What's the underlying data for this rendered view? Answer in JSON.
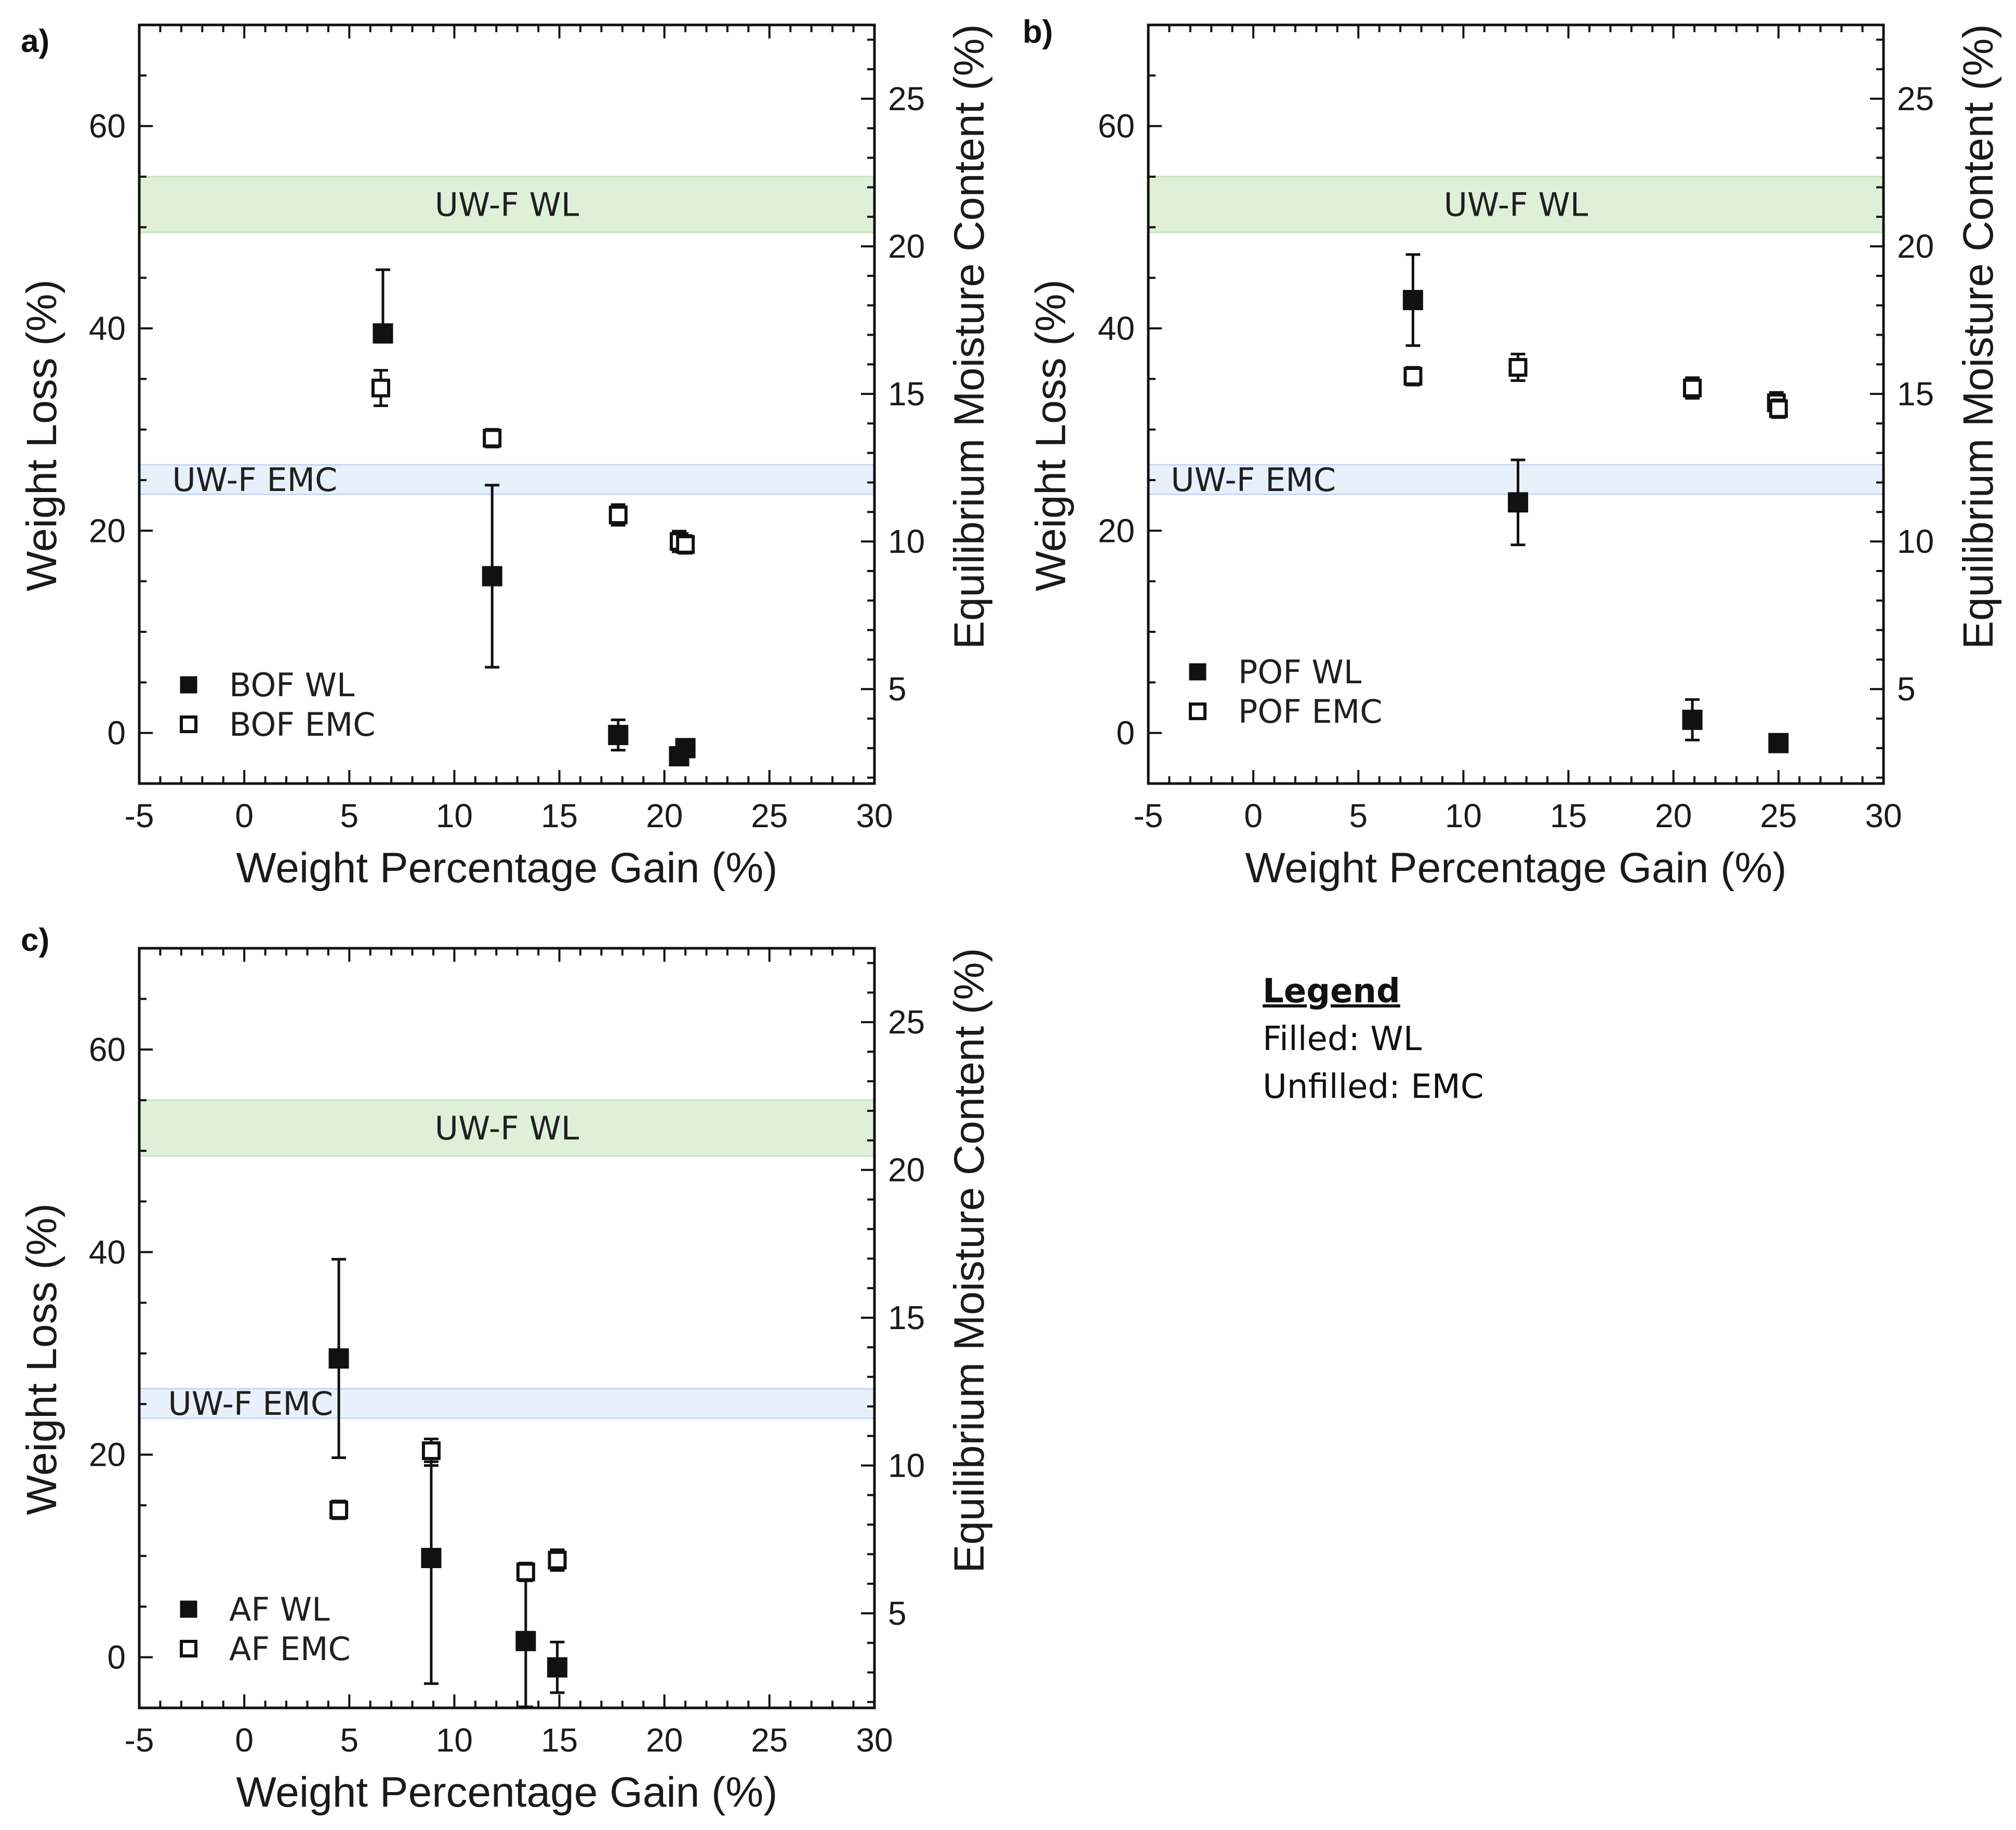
{
  "figure_legend": {
    "title": "Legend",
    "filled_line": "Filled: WL",
    "unfilled_line": "Unfilled: EMC"
  },
  "colors": {
    "wl_band": "#dff0d8",
    "wl_band_edge": "#c6e6bb",
    "emc_band": "#e8f0fb",
    "emc_band_edge": "#c9d8f0",
    "marker": "#111111"
  },
  "chart_data": [
    {
      "panel": "a)",
      "type": "scatter",
      "xlabel": "Weight Percentage Gain (%)",
      "ylabel": "Weight Loss (%)",
      "y2label": "Equilibrium Moisture Content (%)",
      "xlim": [
        -5,
        30
      ],
      "xticks": [
        -5,
        0,
        5,
        10,
        15,
        20,
        25,
        30
      ],
      "xtick_labels": [
        "-5",
        "0",
        "5",
        "10",
        "15",
        "20",
        "25",
        "30"
      ],
      "ylim": [
        -5,
        70
      ],
      "yticks": [
        0,
        20,
        40,
        60
      ],
      "ytick_labels": [
        "0",
        "20",
        "40",
        "60"
      ],
      "y2lim": [
        1.8,
        27.5
      ],
      "y2ticks": [
        5,
        10,
        15,
        20,
        25
      ],
      "y2tick_labels": [
        "5",
        "10",
        "15",
        "20",
        "25"
      ],
      "bands": [
        {
          "label": "UW-F WL",
          "axis": "left",
          "range": [
            49.5,
            55
          ],
          "label_x": 12.5
        },
        {
          "label": "UW-F EMC",
          "axis": "right",
          "range": [
            11.6,
            12.6
          ],
          "label_x": 0.5
        }
      ],
      "series": [
        {
          "name": "BOF WL",
          "axis": "left",
          "marker": "filled",
          "points": [
            {
              "x": 6.6,
              "y": 39.5,
              "err_low": 0,
              "err_high": 6.3
            },
            {
              "x": 11.8,
              "y": 15.5,
              "err_low": 9.0,
              "err_high": 9.0
            },
            {
              "x": 17.8,
              "y": -0.2,
              "err_low": 1.5,
              "err_high": 1.5
            },
            {
              "x": 20.7,
              "y": -2.3,
              "err_low": 0.4,
              "err_high": 0.4
            },
            {
              "x": 21.0,
              "y": -1.5,
              "err_low": 0.4,
              "err_high": 0.4
            }
          ]
        },
        {
          "name": "BOF EMC",
          "axis": "right",
          "marker": "open",
          "points": [
            {
              "x": 6.5,
              "y": 15.2,
              "err_low": 0.6,
              "err_high": 0.6
            },
            {
              "x": 11.8,
              "y": 13.5,
              "err_low": 0.3,
              "err_high": 0.3
            },
            {
              "x": 17.8,
              "y": 10.9,
              "err_low": 0.35,
              "err_high": 0.35
            },
            {
              "x": 20.7,
              "y": 10.0,
              "err_low": 0.35,
              "err_high": 0.35
            },
            {
              "x": 21.0,
              "y": 9.9,
              "err_low": 0.3,
              "err_high": 0.3
            }
          ]
        }
      ],
      "legend": [
        "BOF WL",
        "BOF EMC"
      ]
    },
    {
      "panel": "b)",
      "type": "scatter",
      "xlabel": "Weight Percentage Gain (%)",
      "ylabel": "Weight Loss (%)",
      "y2label": "Equilibrium Moisture Content (%)",
      "xlim": [
        -5,
        30
      ],
      "xticks": [
        -5,
        0,
        5,
        10,
        15,
        20,
        25,
        30
      ],
      "xtick_labels": [
        "-5",
        "0",
        "5",
        "10",
        "15",
        "20",
        "25",
        "30"
      ],
      "ylim": [
        -5,
        70
      ],
      "yticks": [
        0,
        20,
        40,
        60
      ],
      "ytick_labels": [
        "0",
        "20",
        "40",
        "60"
      ],
      "y2lim": [
        1.8,
        27.5
      ],
      "y2ticks": [
        5,
        10,
        15,
        20,
        25
      ],
      "y2tick_labels": [
        "5",
        "10",
        "15",
        "20",
        "25"
      ],
      "bands": [
        {
          "label": "UW-F WL",
          "axis": "left",
          "range": [
            49.5,
            55
          ],
          "label_x": 12.5
        },
        {
          "label": "UW-F EMC",
          "axis": "right",
          "range": [
            11.6,
            12.6
          ],
          "label_x": 0.0
        }
      ],
      "series": [
        {
          "name": "POF WL",
          "axis": "left",
          "marker": "filled",
          "points": [
            {
              "x": 7.6,
              "y": 42.8,
              "err_low": 4.5,
              "err_high": 4.5
            },
            {
              "x": 12.6,
              "y": 22.8,
              "err_low": 4.2,
              "err_high": 4.2
            },
            {
              "x": 20.9,
              "y": 1.3,
              "err_low": 2.0,
              "err_high": 2.0
            },
            {
              "x": 25.0,
              "y": -1.0,
              "err_low": 0.5,
              "err_high": 0.5
            }
          ]
        },
        {
          "name": "POF EMC",
          "axis": "right",
          "marker": "open",
          "points": [
            {
              "x": 7.6,
              "y": 15.6,
              "err_low": 0.3,
              "err_high": 0.3
            },
            {
              "x": 12.6,
              "y": 15.9,
              "err_low": 0.45,
              "err_high": 0.45
            },
            {
              "x": 20.9,
              "y": 15.2,
              "err_low": 0.35,
              "err_high": 0.35
            },
            {
              "x": 24.9,
              "y": 14.7,
              "err_low": 0.35,
              "err_high": 0.35
            },
            {
              "x": 25.0,
              "y": 14.5,
              "err_low": 0.3,
              "err_high": 0.3
            }
          ]
        }
      ],
      "legend": [
        "POF WL",
        "POF EMC"
      ]
    },
    {
      "panel": "c)",
      "type": "scatter",
      "xlabel": "Weight Percentage Gain (%)",
      "ylabel": "Weight Loss (%)",
      "y2label": "Equilibrium Moisture Content (%)",
      "xlim": [
        -5,
        30
      ],
      "xticks": [
        -5,
        0,
        5,
        10,
        15,
        20,
        25,
        30
      ],
      "xtick_labels": [
        "-5",
        "0",
        "5",
        "10",
        "15",
        "20",
        "25",
        "30"
      ],
      "ylim": [
        -5,
        70
      ],
      "yticks": [
        0,
        20,
        40,
        60
      ],
      "ytick_labels": [
        "0",
        "20",
        "40",
        "60"
      ],
      "y2lim": [
        1.8,
        27.5
      ],
      "y2ticks": [
        5,
        10,
        15,
        20,
        25
      ],
      "y2tick_labels": [
        "5",
        "10",
        "15",
        "20",
        "25"
      ],
      "bands": [
        {
          "label": "UW-F WL",
          "axis": "left",
          "range": [
            49.5,
            55
          ],
          "label_x": 12.5
        },
        {
          "label": "UW-F EMC",
          "axis": "right",
          "range": [
            11.6,
            12.6
          ],
          "label_x": 0.3
        }
      ],
      "series": [
        {
          "name": "AF WL",
          "axis": "left",
          "marker": "filled",
          "points": [
            {
              "x": 4.5,
              "y": 29.5,
              "err_low": 9.8,
              "err_high": 9.8
            },
            {
              "x": 8.9,
              "y": 9.8,
              "err_low": 12.4,
              "err_high": 9.5
            },
            {
              "x": 13.4,
              "y": 1.6,
              "err_low": 6.5,
              "err_high": 6.5
            },
            {
              "x": 14.9,
              "y": -1.0,
              "err_low": 2.5,
              "err_high": 2.5
            }
          ]
        },
        {
          "name": "AF EMC",
          "axis": "right",
          "marker": "open",
          "points": [
            {
              "x": 4.5,
              "y": 8.5,
              "err_low": 0.3,
              "err_high": 0.3
            },
            {
              "x": 8.9,
              "y": 10.5,
              "err_low": 0.5,
              "err_high": 0.4
            },
            {
              "x": 13.4,
              "y": 6.4,
              "err_low": 0.3,
              "err_high": 0.3
            },
            {
              "x": 14.9,
              "y": 6.8,
              "err_low": 0.35,
              "err_high": 0.35
            }
          ]
        }
      ],
      "legend": [
        "AF WL",
        "AF EMC"
      ]
    }
  ]
}
